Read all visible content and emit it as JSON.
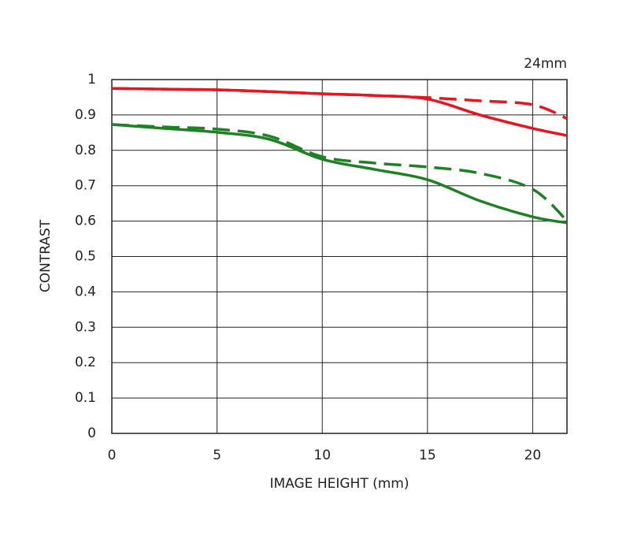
{
  "chart_data": {
    "type": "line",
    "annotation": "24mm",
    "x_label": "IMAGE HEIGHT (mm)",
    "y_label": "CONTRAST",
    "x": [
      0,
      2.5,
      5,
      7.5,
      10,
      12.5,
      15,
      17.5,
      20,
      21.63
    ],
    "series": [
      {
        "color": "#e8141e",
        "style": "solid",
        "values": [
          0.975,
          0.973,
          0.971,
          0.966,
          0.96,
          0.955,
          0.945,
          0.9,
          0.862,
          0.842
        ]
      },
      {
        "color": "#e8141e",
        "style": "dashed",
        "values": [
          0.975,
          0.973,
          0.971,
          0.966,
          0.96,
          0.955,
          0.949,
          0.94,
          0.929,
          0.89
        ]
      },
      {
        "color": "#1e8224",
        "style": "solid",
        "values": [
          0.873,
          0.862,
          0.851,
          0.831,
          0.775,
          0.746,
          0.717,
          0.657,
          0.612,
          0.595
        ]
      },
      {
        "color": "#1e8224",
        "style": "dashed",
        "values": [
          0.873,
          0.866,
          0.86,
          0.84,
          0.782,
          0.764,
          0.753,
          0.735,
          0.69,
          0.601
        ]
      }
    ],
    "xlim": [
      0,
      21.63
    ],
    "ylim": [
      0,
      1
    ],
    "xticks": [
      0,
      5,
      10,
      15,
      20
    ],
    "yticks": [
      0,
      0.1,
      0.2,
      0.3,
      0.4,
      0.5,
      0.6,
      0.7,
      0.8,
      0.9,
      1
    ],
    "grid": true
  }
}
